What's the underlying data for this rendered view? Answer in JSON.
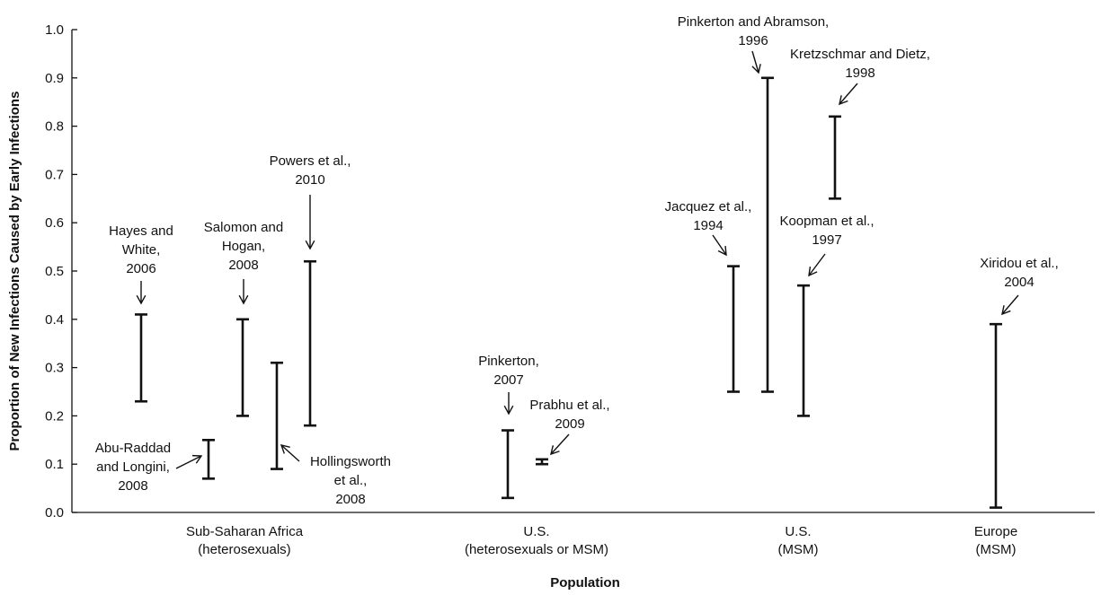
{
  "chart_data": {
    "type": "range",
    "xlabel": "Population",
    "ylabel": "Proportion of New Infections Caused by Early Infections",
    "ylim": [
      0,
      1.0
    ],
    "yticks": [
      "0.0",
      "0.1",
      "0.2",
      "0.3",
      "0.4",
      "0.5",
      "0.6",
      "0.7",
      "0.8",
      "0.9",
      "1.0"
    ],
    "categories": [
      [
        "Sub-Saharan Africa",
        "(heterosexuals)"
      ],
      [
        "U.S.",
        "(heterosexuals or MSM)"
      ],
      [
        "U.S.",
        "(MSM)"
      ],
      [
        "Europe",
        "(MSM)"
      ]
    ],
    "ranges": [
      {
        "category": 0,
        "low": 0.07,
        "high": 0.15,
        "label": [
          "Abu-Raddad",
          "and Longini,",
          "2008"
        ]
      },
      {
        "category": 0,
        "low": 0.23,
        "high": 0.41,
        "label": [
          "Hayes and",
          "White,",
          "2006"
        ]
      },
      {
        "category": 0,
        "low": 0.2,
        "high": 0.4,
        "label": [
          "Salomon and",
          "Hogan,",
          "2008"
        ]
      },
      {
        "category": 0,
        "low": 0.09,
        "high": 0.31,
        "label": [
          "Hollingsworth",
          "et al.,",
          "2008"
        ]
      },
      {
        "category": 0,
        "low": 0.18,
        "high": 0.52,
        "label": [
          "Powers et al.,",
          "2010"
        ]
      },
      {
        "category": 1,
        "low": 0.03,
        "high": 0.17,
        "label": [
          "Pinkerton,",
          "2007"
        ]
      },
      {
        "category": 1,
        "low": 0.1,
        "high": 0.11,
        "label": [
          "Prabhu et al.,",
          "2009"
        ]
      },
      {
        "category": 2,
        "low": 0.25,
        "high": 0.51,
        "label": [
          "Jacquez et al.,",
          "1994"
        ]
      },
      {
        "category": 2,
        "low": 0.25,
        "high": 0.9,
        "label": [
          "Pinkerton and Abramson,",
          "1996"
        ]
      },
      {
        "category": 2,
        "low": 0.2,
        "high": 0.47,
        "label": [
          "Koopman et al.,",
          "1997"
        ]
      },
      {
        "category": 2,
        "low": 0.65,
        "high": 0.82,
        "label": [
          "Kretzschmar and Dietz,",
          "1998"
        ]
      },
      {
        "category": 3,
        "low": 0.01,
        "high": 0.39,
        "label": [
          "Xiridou et al.,",
          "2004"
        ]
      }
    ],
    "grid": false,
    "legend": "none"
  }
}
